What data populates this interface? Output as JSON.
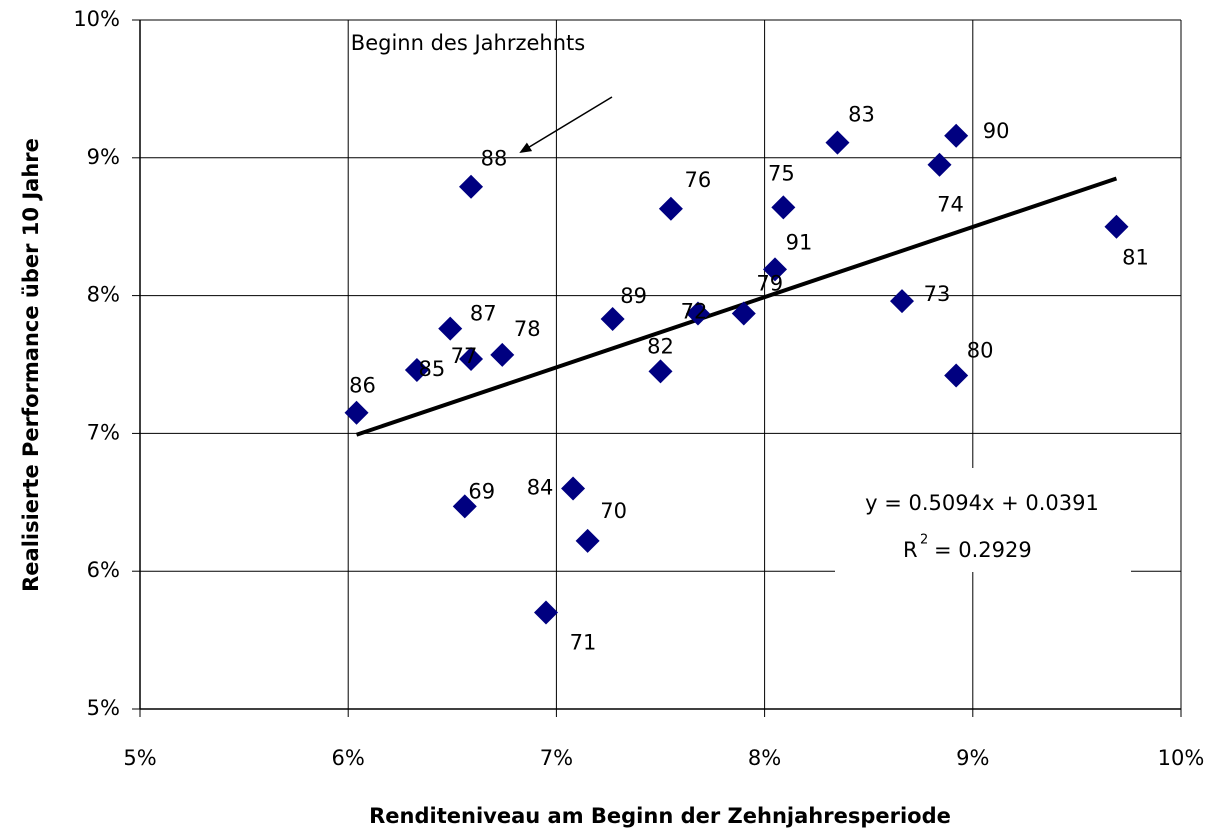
{
  "chart_data": {
    "type": "scatter",
    "x_label": "Renditeniveau am Beginn der Zehnjahresperiode",
    "y_label": "Realisierte Performance über 10 Jahre",
    "annotation": "Beginn des Jahrzehnts",
    "color": "#000080",
    "grid": true,
    "xlim": [
      5,
      10
    ],
    "ylim": [
      5,
      10
    ],
    "xticks": [
      {
        "value": 5,
        "label": "5%"
      },
      {
        "value": 6,
        "label": "6%"
      },
      {
        "value": 7,
        "label": "7%"
      },
      {
        "value": 8,
        "label": "8%"
      },
      {
        "value": 9,
        "label": "9%"
      },
      {
        "value": 10,
        "label": "10%"
      }
    ],
    "yticks": [
      {
        "value": 5,
        "label": "5%"
      },
      {
        "value": 6,
        "label": "6%"
      },
      {
        "value": 7,
        "label": "7%"
      },
      {
        "value": 8,
        "label": "8%"
      },
      {
        "value": 9,
        "label": "9%"
      },
      {
        "value": 10,
        "label": "10%"
      }
    ],
    "point_labels": [
      "86",
      "85",
      "87",
      "77",
      "78",
      "88",
      "69",
      "84",
      "70",
      "71",
      "89",
      "82",
      "76",
      "72",
      "79",
      "75",
      "91",
      "83",
      "73",
      "74",
      "90",
      "80",
      "81"
    ],
    "x": [
      6.04,
      6.33,
      6.49,
      6.59,
      6.74,
      6.59,
      6.56,
      7.08,
      7.15,
      6.95,
      7.27,
      7.5,
      7.55,
      7.68,
      7.9,
      8.09,
      8.05,
      8.35,
      8.66,
      8.84,
      8.92,
      8.92,
      9.69
    ],
    "values": [
      7.15,
      7.46,
      7.76,
      7.54,
      7.57,
      8.79,
      6.47,
      6.6,
      6.22,
      5.7,
      7.83,
      7.45,
      8.63,
      7.87,
      7.87,
      8.64,
      8.19,
      9.11,
      7.96,
      8.95,
      9.16,
      7.42,
      8.5
    ],
    "trendline": {
      "x": [
        6.04,
        9.69
      ],
      "values": [
        6.99,
        8.85
      ],
      "color": "#000000",
      "equation": "y = 0.5094x + 0.0391",
      "r_squared": {
        "symbol": "R",
        "exponent": "2",
        "text": "= 0.2929"
      }
    }
  }
}
